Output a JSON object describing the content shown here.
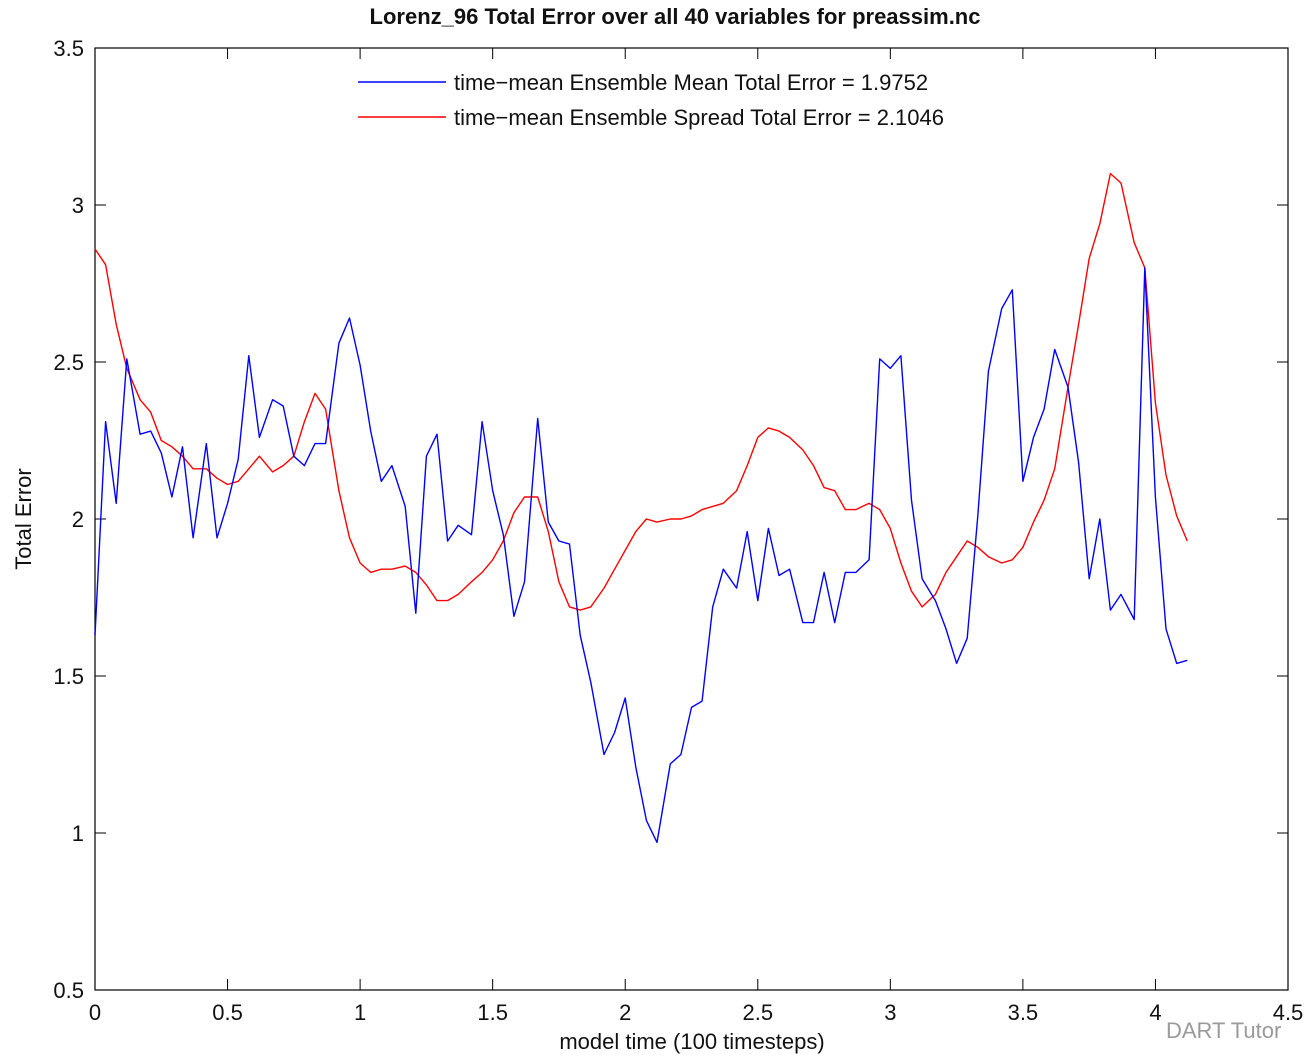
{
  "chart_data": {
    "type": "line",
    "title": "Lorenz_96 Total Error over all 40 variables for preassim.nc",
    "xlabel": "model time (100 timesteps)",
    "ylabel": "Total Error",
    "xlim": [
      0,
      4.5
    ],
    "ylim": [
      0.5,
      3.5
    ],
    "xticks": [
      0,
      0.5,
      1,
      1.5,
      2,
      2.5,
      3,
      3.5,
      4,
      4.5
    ],
    "xtick_labels": [
      "0",
      "0.5",
      "1",
      "1.5",
      "2",
      "2.5",
      "3",
      "3.5",
      "4",
      "4.5"
    ],
    "yticks": [
      0.5,
      1,
      1.5,
      2,
      2.5,
      3,
      3.5
    ],
    "ytick_labels": [
      "0.5",
      "1",
      "1.5",
      "2",
      "2.5",
      "3",
      "3.5"
    ],
    "grid": false,
    "legend_position": "top-center",
    "series": [
      {
        "name": "time−mean Ensemble Mean Total Error = 1.9752",
        "color": "#0000ff",
        "x": [
          0,
          0.04,
          0.08,
          0.12,
          0.17,
          0.21,
          0.25,
          0.29,
          0.33,
          0.37,
          0.42,
          0.46,
          0.5,
          0.54,
          0.58,
          0.62,
          0.67,
          0.71,
          0.75,
          0.79,
          0.83,
          0.87,
          0.92,
          0.96,
          1,
          1.04,
          1.08,
          1.12,
          1.17,
          1.21,
          1.25,
          1.29,
          1.33,
          1.37,
          1.42,
          1.46,
          1.5,
          1.54,
          1.58,
          1.62,
          1.67,
          1.71,
          1.75,
          1.79,
          1.83,
          1.87,
          1.92,
          1.96,
          2,
          2.04,
          2.08,
          2.12,
          2.17,
          2.21,
          2.25,
          2.29,
          2.33,
          2.37,
          2.42,
          2.46,
          2.5,
          2.54,
          2.58,
          2.62,
          2.67,
          2.71,
          2.75,
          2.79,
          2.83,
          2.87,
          2.92,
          2.96,
          3,
          3.04,
          3.08,
          3.12,
          3.17,
          3.21,
          3.25,
          3.29,
          3.33,
          3.37,
          3.42,
          3.46,
          3.5,
          3.54,
          3.58,
          3.62,
          3.67,
          3.71,
          3.75,
          3.79,
          3.83,
          3.87,
          3.92,
          3.96,
          4,
          4.04,
          4.08,
          4.12
        ],
        "values": [
          1.63,
          2.31,
          2.05,
          2.51,
          2.27,
          2.28,
          2.21,
          2.07,
          2.23,
          1.94,
          2.24,
          1.94,
          2.05,
          2.19,
          2.52,
          2.26,
          2.38,
          2.36,
          2.2,
          2.17,
          2.24,
          2.24,
          2.56,
          2.64,
          2.49,
          2.28,
          2.12,
          2.17,
          2.04,
          1.7,
          2.2,
          2.27,
          1.93,
          1.98,
          1.95,
          2.31,
          2.09,
          1.95,
          1.69,
          1.8,
          2.32,
          1.99,
          1.93,
          1.92,
          1.63,
          1.48,
          1.25,
          1.32,
          1.43,
          1.21,
          1.04,
          0.97,
          1.22,
          1.25,
          1.4,
          1.42,
          1.72,
          1.84,
          1.78,
          1.96,
          1.74,
          1.97,
          1.82,
          1.84,
          1.67,
          1.67,
          1.83,
          1.67,
          1.83,
          1.83,
          1.87,
          2.51,
          2.48,
          2.52,
          2.06,
          1.81,
          1.74,
          1.65,
          1.54,
          1.62,
          2.01,
          2.47,
          2.67,
          2.73,
          2.12,
          2.26,
          2.35,
          2.54,
          2.42,
          2.18,
          1.81,
          2.0,
          1.71,
          1.76,
          1.68,
          2.8,
          2.07,
          1.65,
          1.54,
          1.55
        ]
      },
      {
        "name": "time−mean Ensemble Spread Total Error = 2.1046",
        "color": "#ff0000",
        "x": [
          0,
          0.04,
          0.08,
          0.12,
          0.17,
          0.21,
          0.25,
          0.29,
          0.33,
          0.37,
          0.42,
          0.46,
          0.5,
          0.54,
          0.58,
          0.62,
          0.67,
          0.71,
          0.75,
          0.79,
          0.83,
          0.87,
          0.92,
          0.96,
          1,
          1.04,
          1.08,
          1.12,
          1.17,
          1.21,
          1.25,
          1.29,
          1.33,
          1.37,
          1.42,
          1.46,
          1.5,
          1.54,
          1.58,
          1.62,
          1.67,
          1.71,
          1.75,
          1.79,
          1.83,
          1.87,
          1.92,
          1.96,
          2,
          2.04,
          2.08,
          2.12,
          2.17,
          2.21,
          2.25,
          2.29,
          2.33,
          2.37,
          2.42,
          2.46,
          2.5,
          2.54,
          2.58,
          2.62,
          2.67,
          2.71,
          2.75,
          2.79,
          2.83,
          2.87,
          2.92,
          2.96,
          3,
          3.04,
          3.08,
          3.12,
          3.17,
          3.21,
          3.25,
          3.29,
          3.33,
          3.37,
          3.42,
          3.46,
          3.5,
          3.54,
          3.58,
          3.62,
          3.67,
          3.71,
          3.75,
          3.79,
          3.83,
          3.87,
          3.92,
          3.96,
          4,
          4.04,
          4.08,
          4.12
        ],
        "values": [
          2.86,
          2.81,
          2.62,
          2.48,
          2.38,
          2.34,
          2.25,
          2.23,
          2.2,
          2.16,
          2.16,
          2.13,
          2.11,
          2.12,
          2.16,
          2.2,
          2.15,
          2.17,
          2.2,
          2.31,
          2.4,
          2.35,
          2.09,
          1.94,
          1.86,
          1.83,
          1.84,
          1.84,
          1.85,
          1.83,
          1.79,
          1.74,
          1.74,
          1.76,
          1.8,
          1.83,
          1.87,
          1.93,
          2.02,
          2.07,
          2.07,
          1.96,
          1.8,
          1.72,
          1.71,
          1.72,
          1.78,
          1.84,
          1.9,
          1.96,
          2.0,
          1.99,
          2.0,
          2.0,
          2.01,
          2.03,
          2.04,
          2.05,
          2.09,
          2.17,
          2.26,
          2.29,
          2.28,
          2.26,
          2.22,
          2.17,
          2.1,
          2.09,
          2.03,
          2.03,
          2.05,
          2.03,
          1.97,
          1.86,
          1.77,
          1.72,
          1.76,
          1.83,
          1.88,
          1.93,
          1.91,
          1.88,
          1.86,
          1.87,
          1.91,
          1.99,
          2.06,
          2.16,
          2.42,
          2.62,
          2.83,
          2.94,
          3.1,
          3.07,
          2.88,
          2.8,
          2.37,
          2.14,
          2.01,
          1.93
        ]
      }
    ]
  },
  "watermark": "DART Tutor"
}
